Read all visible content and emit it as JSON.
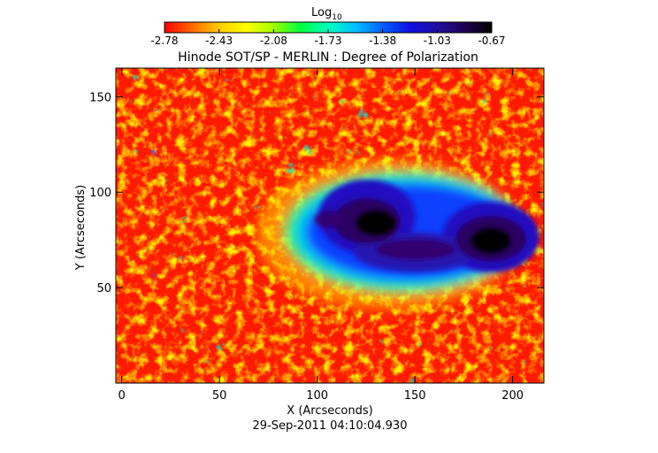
{
  "colorbar": {
    "label_main": "Log",
    "label_sub": "10",
    "ticks": [
      "-2.78",
      "-2.43",
      "-2.08",
      "-1.73",
      "-1.38",
      "-1.03",
      "-0.67"
    ],
    "range": [
      -2.78,
      -0.67
    ],
    "colors": [
      "#ff0000",
      "#ff6600",
      "#ffcc00",
      "#ffff00",
      "#a0ff00",
      "#00ff40",
      "#00ffc0",
      "#00c0ff",
      "#0060ff",
      "#1010e0",
      "#2010a0",
      "#200050",
      "#000000"
    ]
  },
  "title": "Hinode SOT/SP - MERLIN : Degree of Polarization",
  "x_axis": {
    "label": "X (Arcseconds)",
    "ticks": [
      "0",
      "50",
      "100",
      "150",
      "200"
    ],
    "tick_values": [
      0,
      50,
      100,
      150,
      200
    ],
    "range": [
      -3,
      216
    ]
  },
  "y_axis": {
    "label": "Y (Arcseconds)",
    "ticks": [
      "50",
      "100",
      "150"
    ],
    "tick_values": [
      50,
      100,
      150
    ],
    "range": [
      0,
      165
    ]
  },
  "timestamp": "29-Sep-2011 04:10:04.930"
}
